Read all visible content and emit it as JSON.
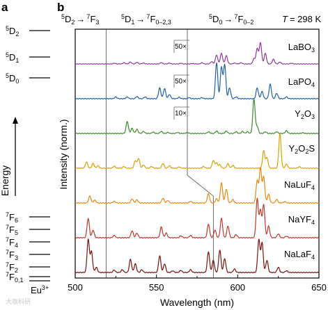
{
  "panels": {
    "a": "a",
    "b": "b"
  },
  "panel_a": {
    "levels": [
      {
        "state": "5D2",
        "main": "D",
        "sup": "5",
        "sub": "2"
      },
      {
        "state": "5D1",
        "main": "D",
        "sup": "5",
        "sub": "1"
      },
      {
        "state": "5D0",
        "main": "D",
        "sup": "5",
        "sub": "0"
      },
      {
        "state": "7F6",
        "main": "F",
        "sup": "7",
        "sub": "6"
      },
      {
        "state": "7F5",
        "main": "F",
        "sup": "7",
        "sub": "5"
      },
      {
        "state": "7F4",
        "main": "F",
        "sup": "7",
        "sub": "4"
      },
      {
        "state": "7F3",
        "main": "F",
        "sup": "7",
        "sub": "3"
      },
      {
        "state": "7F2",
        "main": "F",
        "sup": "7",
        "sub": "2"
      },
      {
        "state": "7F0,1",
        "main": "F",
        "sup": "7",
        "sub": "0,1"
      }
    ],
    "energy_label": "Energy",
    "ion_label_main": "Eu",
    "ion_label_sup": "3+"
  },
  "chart_data": {
    "type": "line",
    "title": "",
    "temperature_label": "T = 298 K",
    "temperature": {
      "symbol": "T",
      "value": "= 298 K"
    },
    "xlabel": "Wavelength (nm)",
    "ylabel": "Intensity (norm.)",
    "xlim": [
      500,
      650
    ],
    "xticks": [
      500,
      550,
      600,
      650
    ],
    "xtick_labels": [
      "500",
      "550",
      "600",
      "650"
    ],
    "region_dividers": [
      519,
      569
    ],
    "transition_labels": [
      {
        "from": "5D2",
        "to": "7F3",
        "from_sup": "5",
        "from_main": "D",
        "from_sub": "2",
        "arrow": "→",
        "to_sup": "7",
        "to_main": "F",
        "to_sub": "3"
      },
      {
        "from": "5D1",
        "to": "7F0–2,3",
        "from_sup": "5",
        "from_main": "D",
        "from_sub": "1",
        "arrow": "→",
        "to_sup": "7",
        "to_main": "F",
        "to_sub": "0–2,3"
      },
      {
        "from": "5D0",
        "to": "7F0–2",
        "from_sup": "5",
        "from_main": "D",
        "from_sub": "0",
        "arrow": "→",
        "to_sup": "7",
        "to_main": "F",
        "to_sub": "0–2"
      }
    ],
    "series": [
      {
        "name": "LaBO3",
        "label_main": "LaBO",
        "label_sub": "3",
        "color": "#8e3a9c",
        "scale_label": "50×",
        "peaks": [
          [
            524,
            0.03
          ],
          [
            530,
            0.05
          ],
          [
            534,
            0.08
          ],
          [
            538,
            0.07
          ],
          [
            542,
            0.04
          ],
          [
            553,
            0.06
          ],
          [
            558,
            0.04
          ],
          [
            565,
            0.03
          ],
          [
            572,
            0.02
          ],
          [
            578,
            0.05
          ],
          [
            584,
            0.1
          ],
          [
            587,
            0.38
          ],
          [
            590,
            0.45
          ],
          [
            593,
            0.35
          ],
          [
            598,
            0.04
          ],
          [
            602,
            0.05
          ],
          [
            610,
            0.22
          ],
          [
            612,
            0.65
          ],
          [
            614,
            0.9
          ],
          [
            617,
            0.45
          ],
          [
            622,
            0.2
          ],
          [
            626,
            0.08
          ],
          [
            633,
            0.03
          ]
        ]
      },
      {
        "name": "LaPO4",
        "label_main": "LaPO",
        "label_sub": "4",
        "color": "#2160a8",
        "scale_label": "50×",
        "peaks": [
          [
            525,
            0.05
          ],
          [
            532,
            0.05
          ],
          [
            538,
            0.06
          ],
          [
            543,
            0.05
          ],
          [
            552,
            0.3
          ],
          [
            555,
            0.28
          ],
          [
            558,
            0.12
          ],
          [
            564,
            0.04
          ],
          [
            570,
            0.03
          ],
          [
            578,
            0.03
          ],
          [
            587,
            1.0
          ],
          [
            590,
            0.88
          ],
          [
            592,
            0.95
          ],
          [
            595,
            0.3
          ],
          [
            599,
            0.05
          ],
          [
            612,
            0.3
          ],
          [
            615,
            0.2
          ],
          [
            620,
            0.4
          ],
          [
            624,
            0.15
          ],
          [
            630,
            0.05
          ]
        ]
      },
      {
        "name": "Y2O3",
        "label_main": "Y",
        "label_sub": "2",
        "label_main2": "O",
        "label_sub2": "3",
        "color": "#3b8d2a",
        "scale_label": "10×",
        "peaks": [
          [
            532,
            0.35
          ],
          [
            535,
            0.15
          ],
          [
            538,
            0.12
          ],
          [
            542,
            0.06
          ],
          [
            548,
            0.04
          ],
          [
            553,
            0.06
          ],
          [
            557,
            0.03
          ],
          [
            563,
            0.03
          ],
          [
            569,
            0.03
          ],
          [
            582,
            0.05
          ],
          [
            587,
            0.07
          ],
          [
            593,
            0.07
          ],
          [
            599,
            0.05
          ],
          [
            603,
            0.06
          ],
          [
            606,
            0.05
          ],
          [
            610,
            1.0
          ],
          [
            612,
            0.2
          ],
          [
            617,
            0.05
          ],
          [
            624,
            0.05
          ],
          [
            630,
            0.08
          ],
          [
            640,
            0.02
          ]
        ]
      },
      {
        "name": "Y2O2S",
        "label_main": "Y",
        "label_sub": "2",
        "label_main2": "O",
        "label_sub2": "2",
        "label_main3": "S",
        "color": "#d9a300",
        "peaks": [
          [
            507,
            0.18
          ],
          [
            511,
            0.14
          ],
          [
            514,
            0.07
          ],
          [
            524,
            0.06
          ],
          [
            530,
            0.05
          ],
          [
            537,
            0.22
          ],
          [
            539,
            0.28
          ],
          [
            542,
            0.1
          ],
          [
            547,
            0.05
          ],
          [
            554,
            0.14
          ],
          [
            558,
            0.07
          ],
          [
            564,
            0.04
          ],
          [
            579,
            0.05
          ],
          [
            585,
            0.22
          ],
          [
            587,
            0.15
          ],
          [
            589,
            0.1
          ],
          [
            594,
            0.13
          ],
          [
            597,
            0.08
          ],
          [
            616,
            0.5
          ],
          [
            618,
            0.3
          ],
          [
            626,
            1.0
          ],
          [
            630,
            0.12
          ],
          [
            638,
            0.04
          ]
        ]
      },
      {
        "name": "NaLuF4",
        "label_main": "NaLuF",
        "label_sub": "4",
        "color": "#e68a10",
        "peaks": [
          [
            509,
            0.2
          ],
          [
            512,
            0.08
          ],
          [
            524,
            0.05
          ],
          [
            535,
            0.12
          ],
          [
            538,
            0.09
          ],
          [
            554,
            0.14
          ],
          [
            557,
            0.07
          ],
          [
            571,
            0.05
          ],
          [
            582,
            0.27
          ],
          [
            587,
            0.12
          ],
          [
            590,
            0.58
          ],
          [
            593,
            0.4
          ],
          [
            597,
            0.1
          ],
          [
            612,
            0.65
          ],
          [
            614,
            1.0
          ],
          [
            616,
            0.75
          ],
          [
            619,
            0.25
          ],
          [
            624,
            0.1
          ],
          [
            629,
            0.04
          ]
        ]
      },
      {
        "name": "NaYF4",
        "label_main": "NaYF",
        "label_sub": "4",
        "color": "#c0392b",
        "peaks": [
          [
            508,
            0.5
          ],
          [
            511,
            0.2
          ],
          [
            524,
            0.06
          ],
          [
            535,
            0.18
          ],
          [
            538,
            0.12
          ],
          [
            553,
            0.28
          ],
          [
            556,
            0.12
          ],
          [
            565,
            0.05
          ],
          [
            571,
            0.06
          ],
          [
            582,
            0.35
          ],
          [
            586,
            0.2
          ],
          [
            590,
            0.5
          ],
          [
            594,
            0.3
          ],
          [
            599,
            0.08
          ],
          [
            612,
            1.0
          ],
          [
            614,
            0.7
          ],
          [
            616,
            0.85
          ],
          [
            619,
            0.3
          ],
          [
            625,
            0.1
          ],
          [
            630,
            0.04
          ]
        ]
      },
      {
        "name": "NaLaF4",
        "label_main": "NaLaF",
        "label_sub": "4",
        "color": "#7a1010",
        "peaks": [
          [
            508,
            0.95
          ],
          [
            510,
            0.6
          ],
          [
            513,
            0.15
          ],
          [
            524,
            0.07
          ],
          [
            529,
            0.08
          ],
          [
            534,
            0.38
          ],
          [
            537,
            0.25
          ],
          [
            541,
            0.08
          ],
          [
            552,
            0.48
          ],
          [
            555,
            0.25
          ],
          [
            560,
            0.05
          ],
          [
            565,
            0.06
          ],
          [
            571,
            0.08
          ],
          [
            582,
            0.6
          ],
          [
            585,
            0.35
          ],
          [
            589,
            0.65
          ],
          [
            592,
            0.4
          ],
          [
            598,
            0.1
          ],
          [
            613,
            0.95
          ],
          [
            615,
            0.85
          ],
          [
            618,
            0.35
          ],
          [
            625,
            0.15
          ],
          [
            630,
            0.05
          ]
        ]
      }
    ]
  },
  "watermark": "大咖科研"
}
